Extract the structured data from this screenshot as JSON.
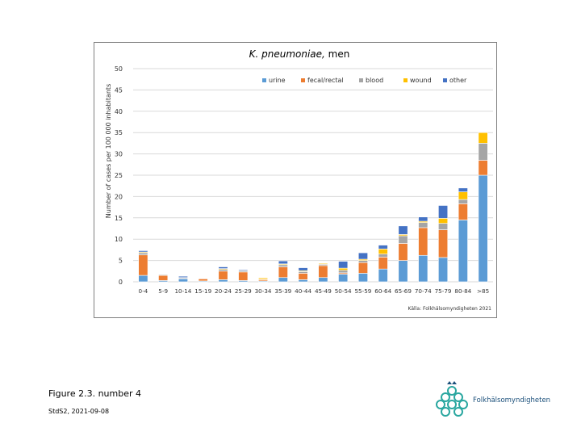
{
  "chart_data": {
    "type": "bar",
    "stacked": true,
    "title_italic": "K. pneumoniae,",
    "title_rest": " men",
    "ylabel": "Number of cases per 100 000 inhabitants",
    "ylim": [
      0,
      50
    ],
    "yticks": [
      0,
      5,
      10,
      15,
      20,
      25,
      30,
      35,
      40,
      45,
      50
    ],
    "grid": true,
    "legend_position": "top-right",
    "categories": [
      "0-4",
      "5-9",
      "10-14",
      "15-19",
      "20-24",
      "25-29",
      "30-34",
      "35-39",
      "40-44",
      "45-49",
      "50-54",
      "55-59",
      "60-64",
      "65-69",
      "70-74",
      "75-79",
      "80-84",
      ">85"
    ],
    "series": [
      {
        "name": "urine",
        "color": "#5b9bd5",
        "values": [
          1.5,
          0.3,
          0.7,
          0.2,
          0.5,
          0.3,
          0.2,
          1.0,
          0.5,
          1.0,
          1.8,
          2.0,
          3.0,
          5.0,
          6.2,
          5.7,
          14.5,
          25.0
        ]
      },
      {
        "name": "fecal/rectal",
        "color": "#ed7d31",
        "values": [
          4.8,
          1.2,
          0.1,
          0.5,
          2.0,
          2.0,
          0.3,
          2.5,
          1.5,
          2.8,
          0.3,
          2.5,
          2.8,
          4.0,
          6.5,
          6.5,
          3.8,
          3.5
        ]
      },
      {
        "name": "blood",
        "color": "#a5a5a5",
        "values": [
          0.5,
          0.2,
          0.2,
          0.1,
          0.4,
          0.3,
          0.1,
          0.5,
          0.4,
          0.3,
          0.6,
          0.5,
          0.7,
          1.8,
          1.2,
          1.5,
          1.0,
          4.0
        ]
      },
      {
        "name": "wound",
        "color": "#ffc000",
        "values": [
          0.2,
          0.1,
          0.0,
          0.1,
          0.2,
          0.1,
          0.3,
          0.2,
          0.2,
          0.2,
          0.5,
          0.3,
          1.2,
          0.3,
          0.3,
          1.2,
          1.8,
          2.5
        ]
      },
      {
        "name": "other",
        "color": "#4472c4",
        "values": [
          0.3,
          0.0,
          0.3,
          0.0,
          0.4,
          0.2,
          0.0,
          0.7,
          0.7,
          0.0,
          1.6,
          1.5,
          0.9,
          2.0,
          1.0,
          3.0,
          0.9,
          0.0
        ]
      }
    ],
    "source": "Källa: Folkhälsomyndigheten 2021"
  },
  "footer": {
    "caption": "Figure 2.3. number 4",
    "sub": "StdS2, 2021-09-08",
    "logo_text": "Folkhälsomyndigheten",
    "logo_icon": "crown-knot-icon"
  }
}
